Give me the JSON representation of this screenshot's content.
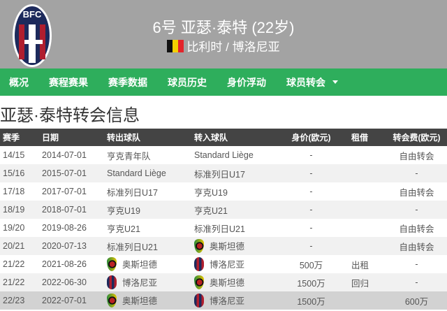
{
  "header": {
    "number_name": "6号 亚瑟·泰特 (22岁)",
    "nationality_club": "比利时 / 博洛尼亚",
    "logo_text": "BFC 1909",
    "flag": "belgium-flag"
  },
  "nav": {
    "items": [
      "概况",
      "赛程赛果",
      "赛季数据",
      "球员历史",
      "身价浮动",
      "球员转会"
    ]
  },
  "page_title": "亚瑟·泰特转会信息",
  "table": {
    "headers": [
      "赛季",
      "日期",
      "转出球队",
      "转入球队",
      "身价(欧元)",
      "租借",
      "转会费(欧元)"
    ],
    "rows": [
      {
        "season": "14/15",
        "date": "2014-07-01",
        "from": "亨克青年队",
        "to": "Standard Liège",
        "value": "-",
        "loan": "",
        "fee": "自由转会"
      },
      {
        "season": "15/16",
        "date": "2015-07-01",
        "from": "Standard Liège",
        "to": "标准列日U17",
        "value": "-",
        "loan": "",
        "fee": "-"
      },
      {
        "season": "17/18",
        "date": "2017-07-01",
        "from": "标准列日U17",
        "to": "亨克U19",
        "value": "-",
        "loan": "",
        "fee": "自由转会"
      },
      {
        "season": "18/19",
        "date": "2018-07-01",
        "from": "亨克U19",
        "to": "亨克U21",
        "value": "-",
        "loan": "",
        "fee": "-"
      },
      {
        "season": "19/20",
        "date": "2019-08-26",
        "from": "亨克U21",
        "to": "标准列日U21",
        "value": "-",
        "loan": "",
        "fee": "自由转会"
      },
      {
        "season": "20/21",
        "date": "2020-07-13",
        "from": "标准列日U21",
        "to": "奥斯坦德",
        "to_icon": "ost",
        "value": "-",
        "loan": "",
        "fee": "自由转会"
      },
      {
        "season": "21/22",
        "date": "2021-08-26",
        "from": "奥斯坦德",
        "from_icon": "ost",
        "to": "博洛尼亚",
        "to_icon": "bol",
        "value": "500万",
        "loan": "出租",
        "fee": "-"
      },
      {
        "season": "21/22",
        "date": "2022-06-30",
        "from": "博洛尼亚",
        "from_icon": "bol",
        "to": "奥斯坦德",
        "to_icon": "ost",
        "value": "1500万",
        "loan": "回归",
        "fee": "-"
      },
      {
        "season": "22/23",
        "date": "2022-07-01",
        "from": "奥斯坦德",
        "from_icon": "ost",
        "to": "博洛尼亚",
        "to_icon": "bol",
        "value": "1500万",
        "loan": "",
        "fee": "600万"
      }
    ]
  }
}
